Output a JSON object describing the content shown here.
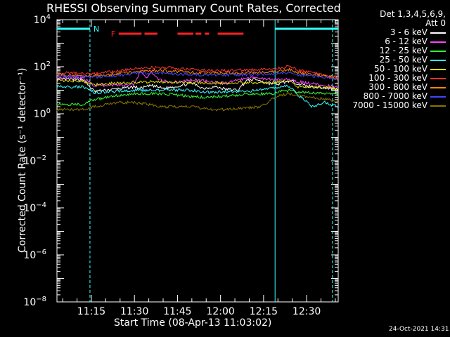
{
  "chart_data": {
    "type": "line",
    "title": "RHESSI Observing Summary Count Rates, Corrected",
    "xlabel": "Start Time (08-Apr-13 11:03:02)",
    "ylabel": "Corrected Count Rate (s⁻¹ detector⁻¹)",
    "yscale": "log",
    "ylim": [
      1e-08,
      10000
    ],
    "xlim_minutes": [
      663,
      761
    ],
    "x_ticks": [
      {
        "t": 675,
        "label": "11:15"
      },
      {
        "t": 690,
        "label": "11:30"
      },
      {
        "t": 705,
        "label": "11:45"
      },
      {
        "t": 720,
        "label": "12:00"
      },
      {
        "t": 735,
        "label": "12:15"
      },
      {
        "t": 750,
        "label": "12:30"
      }
    ],
    "y_ticks": [
      {
        "exp": 4,
        "label": "10"
      },
      {
        "exp": 2,
        "label": "10"
      },
      {
        "exp": 0,
        "label": "10"
      },
      {
        "exp": -2,
        "label": "10"
      },
      {
        "exp": -4,
        "label": "10"
      },
      {
        "exp": -6,
        "label": "10"
      },
      {
        "exp": -8,
        "label": "10"
      }
    ],
    "legend_header": [
      "Det 1,3,4,5,6,9,",
      "Att 0"
    ],
    "series": [
      {
        "name": "3 - 6 keV",
        "color": "#ffffff",
        "points": [
          [
            663,
            30
          ],
          [
            672,
            28
          ],
          [
            676,
            9
          ],
          [
            680,
            10
          ],
          [
            686,
            12
          ],
          [
            690,
            14
          ],
          [
            692,
            12
          ],
          [
            696,
            16
          ],
          [
            700,
            12
          ],
          [
            704,
            14
          ],
          [
            710,
            20
          ],
          [
            714,
            12
          ],
          [
            718,
            14
          ],
          [
            722,
            11
          ],
          [
            726,
            10
          ],
          [
            729,
            25
          ],
          [
            732,
            30
          ],
          [
            736,
            20
          ],
          [
            740,
            18
          ],
          [
            744,
            25
          ],
          [
            750,
            15
          ],
          [
            761,
            11
          ]
        ]
      },
      {
        "name": "6 - 12 keV",
        "color": "#ff44ff",
        "points": [
          [
            663,
            35
          ],
          [
            672,
            33
          ],
          [
            676,
            16
          ],
          [
            684,
            17
          ],
          [
            690,
            18
          ],
          [
            692,
            60
          ],
          [
            694,
            35
          ],
          [
            696,
            60
          ],
          [
            698,
            30
          ],
          [
            702,
            22
          ],
          [
            706,
            22
          ],
          [
            710,
            28
          ],
          [
            714,
            25
          ],
          [
            718,
            22
          ],
          [
            722,
            20
          ],
          [
            728,
            30
          ],
          [
            732,
            35
          ],
          [
            738,
            28
          ],
          [
            744,
            28
          ],
          [
            750,
            20
          ],
          [
            761,
            14
          ]
        ]
      },
      {
        "name": "12 - 25 keV",
        "color": "#33ff33",
        "points": [
          [
            663,
            2.5
          ],
          [
            672,
            2.5
          ],
          [
            676,
            4
          ],
          [
            684,
            6
          ],
          [
            690,
            7
          ],
          [
            700,
            7
          ],
          [
            706,
            6
          ],
          [
            714,
            5
          ],
          [
            720,
            5.5
          ],
          [
            726,
            6
          ],
          [
            732,
            7
          ],
          [
            738,
            7
          ],
          [
            742,
            10
          ],
          [
            746,
            9
          ],
          [
            750,
            8
          ],
          [
            761,
            7
          ]
        ]
      },
      {
        "name": "25 - 50 keV",
        "color": "#33ffff",
        "points": [
          [
            663,
            14
          ],
          [
            672,
            14
          ],
          [
            676,
            8
          ],
          [
            684,
            9
          ],
          [
            690,
            10
          ],
          [
            700,
            10
          ],
          [
            710,
            10
          ],
          [
            716,
            8
          ],
          [
            722,
            9
          ],
          [
            730,
            9
          ],
          [
            738,
            12
          ],
          [
            744,
            15
          ],
          [
            748,
            5
          ],
          [
            752,
            2
          ],
          [
            756,
            3
          ],
          [
            761,
            2
          ]
        ]
      },
      {
        "name": "50 - 100 keV",
        "color": "#dddd00",
        "points": [
          [
            663,
            25
          ],
          [
            672,
            25
          ],
          [
            676,
            18
          ],
          [
            684,
            20
          ],
          [
            690,
            22
          ],
          [
            700,
            23
          ],
          [
            710,
            22
          ],
          [
            720,
            20
          ],
          [
            730,
            21
          ],
          [
            738,
            22
          ],
          [
            744,
            25
          ],
          [
            747,
            14
          ],
          [
            761,
            12
          ]
        ]
      },
      {
        "name": "100 - 300 keV",
        "color": "#ff3333",
        "points": [
          [
            663,
            55
          ],
          [
            672,
            52
          ],
          [
            676,
            50
          ],
          [
            684,
            65
          ],
          [
            690,
            80
          ],
          [
            696,
            95
          ],
          [
            702,
            90
          ],
          [
            708,
            80
          ],
          [
            714,
            70
          ],
          [
            720,
            68
          ],
          [
            726,
            70
          ],
          [
            732,
            75
          ],
          [
            738,
            80
          ],
          [
            744,
            100
          ],
          [
            747,
            70
          ],
          [
            752,
            60
          ],
          [
            761,
            30
          ]
        ]
      },
      {
        "name": "300 - 800 keV",
        "color": "#ff8800",
        "points": [
          [
            663,
            45
          ],
          [
            672,
            42
          ],
          [
            676,
            40
          ],
          [
            684,
            50
          ],
          [
            690,
            60
          ],
          [
            696,
            70
          ],
          [
            702,
            65
          ],
          [
            708,
            60
          ],
          [
            714,
            55
          ],
          [
            720,
            52
          ],
          [
            728,
            55
          ],
          [
            734,
            58
          ],
          [
            740,
            62
          ],
          [
            744,
            75
          ],
          [
            747,
            55
          ],
          [
            752,
            48
          ],
          [
            761,
            35
          ]
        ]
      },
      {
        "name": "800 - 7000 keV",
        "color": "#4444ff",
        "points": [
          [
            663,
            40
          ],
          [
            672,
            38
          ],
          [
            676,
            36
          ],
          [
            684,
            42
          ],
          [
            690,
            50
          ],
          [
            696,
            55
          ],
          [
            702,
            52
          ],
          [
            708,
            48
          ],
          [
            714,
            45
          ],
          [
            720,
            44
          ],
          [
            728,
            46
          ],
          [
            734,
            48
          ],
          [
            740,
            52
          ],
          [
            744,
            60
          ],
          [
            747,
            45
          ],
          [
            752,
            40
          ],
          [
            761,
            30
          ]
        ]
      },
      {
        "name": "7000 - 15000 keV",
        "color": "#887700",
        "points": [
          [
            663,
            1.5
          ],
          [
            672,
            1.5
          ],
          [
            676,
            2
          ],
          [
            684,
            3
          ],
          [
            690,
            3
          ],
          [
            700,
            2
          ],
          [
            710,
            2
          ],
          [
            716,
            1.5
          ],
          [
            722,
            1.5
          ],
          [
            728,
            1.8
          ],
          [
            734,
            2
          ],
          [
            740,
            6
          ],
          [
            744,
            7
          ],
          [
            750,
            5
          ],
          [
            758,
            4
          ],
          [
            761,
            3
          ]
        ]
      }
    ],
    "attenuator_bar": {
      "color": "#33ffff",
      "segments": [
        [
          663,
          674.5
        ],
        [
          739,
          761
        ]
      ],
      "mark": "N"
    },
    "flare_bar": {
      "color": "#ff2222",
      "label": "F",
      "segments": [
        [
          684.5,
          692.5
        ],
        [
          693.5,
          698
        ],
        [
          705,
          710.5
        ],
        [
          711.3,
          713.3
        ],
        [
          714.5,
          716
        ],
        [
          719,
          728
        ]
      ]
    },
    "vertical_markers": [
      {
        "t": 674.5,
        "style": "dashed",
        "color": "#33ffff"
      },
      {
        "t": 739,
        "style": "solid",
        "color": "#33ffff"
      },
      {
        "t": 759,
        "style": "dashed",
        "color": "#33ffff"
      }
    ]
  },
  "footer": {
    "timestamp": "24-Oct-2021 14:31"
  }
}
